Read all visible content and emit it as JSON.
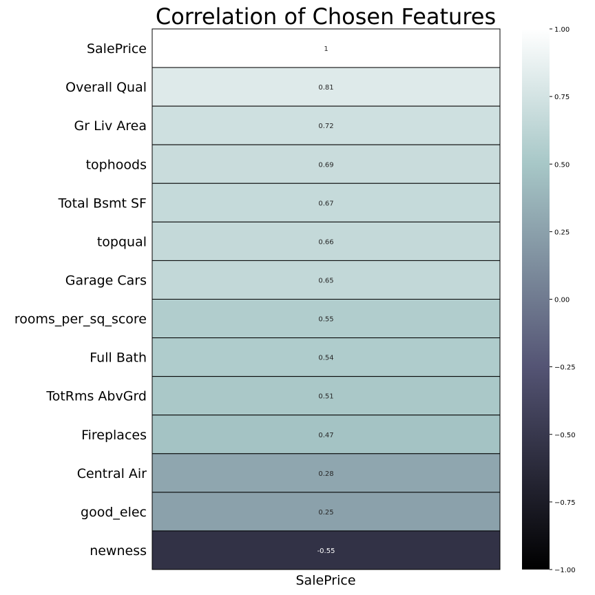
{
  "chart_data": {
    "type": "heatmap",
    "title": "Correlation of Chosen Features",
    "columns": [
      "SalePrice"
    ],
    "rows": [
      "SalePrice",
      "Overall Qual",
      "Gr Liv Area",
      "tophoods",
      "Total Bsmt SF",
      "topqual",
      "Garage Cars",
      "rooms_per_sq_score",
      "Full Bath",
      "TotRms AbvGrd",
      "Fireplaces",
      "Central Air",
      "good_elec",
      "newness"
    ],
    "values": [
      1,
      0.81,
      0.72,
      0.69,
      0.67,
      0.66,
      0.65,
      0.55,
      0.54,
      0.51,
      0.47,
      0.28,
      0.25,
      -0.55
    ],
    "value_labels": [
      "1",
      "0.81",
      "0.72",
      "0.69",
      "0.67",
      "0.66",
      "0.65",
      "0.55",
      "0.54",
      "0.51",
      "0.47",
      "0.28",
      "0.25",
      "-0.55"
    ],
    "colormap": "bone",
    "colorbar": {
      "vmin": -1.0,
      "vmax": 1.0,
      "ticks": [
        1.0,
        0.75,
        0.5,
        0.25,
        0.0,
        -0.25,
        -0.5,
        -0.75,
        -1.0
      ],
      "tick_labels": [
        "1.00",
        "0.75",
        "0.50",
        "0.25",
        "0.00",
        "−0.25",
        "−0.50",
        "−0.75",
        "−1.00"
      ]
    },
    "grid": false,
    "legend": "colorbar-right"
  }
}
